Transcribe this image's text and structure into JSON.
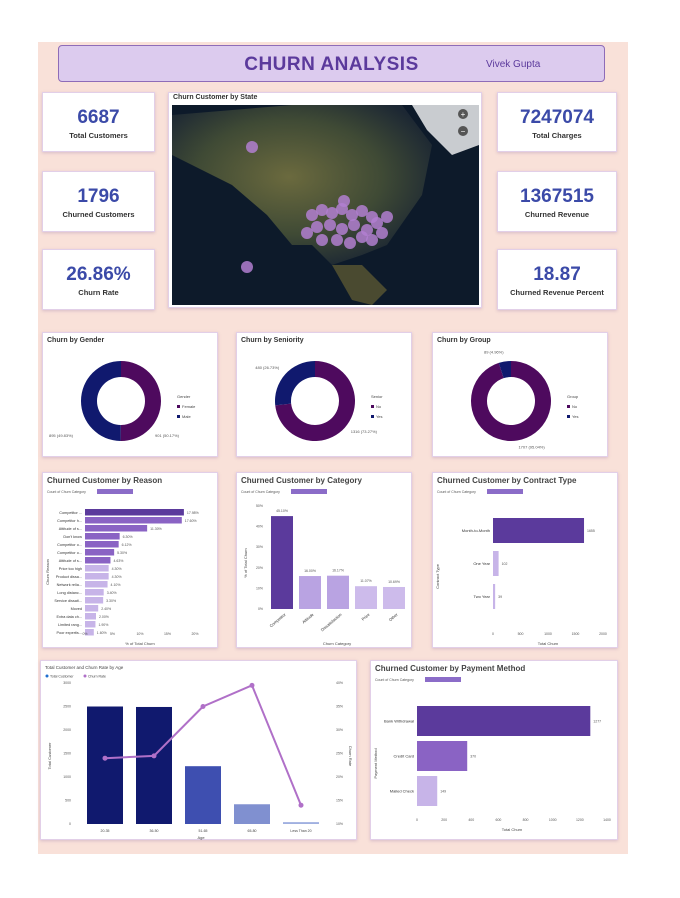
{
  "header": {
    "title": "CHURN ANALYSIS",
    "author": "Vivek Gupta"
  },
  "kpis_left": [
    {
      "value": "6687",
      "label": "Total Customers"
    },
    {
      "value": "1796",
      "label": "Churned Customers"
    },
    {
      "value": "26.86%",
      "label": "Churn Rate"
    }
  ],
  "kpis_right": [
    {
      "value": "7247074",
      "label": "Total Charges"
    },
    {
      "value": "1367515",
      "label": "Churned Revenue"
    },
    {
      "value": "18.87",
      "label": "Churned Revenue Percent"
    }
  ],
  "map": {
    "title": "Churn Customer by State",
    "zoom_in": "+",
    "zoom_out": "−"
  },
  "colors": {
    "accent": "#5b3a9c",
    "purple_dark": "#4e0a5e",
    "navy": "#10196e",
    "bar_purple": "#5b3a9c",
    "bar_light": "#c7b4e8",
    "line": "#b070c8",
    "kpi": "#3b4aa8"
  },
  "chart_data": [
    {
      "type": "pie",
      "title": "Churn by Gender",
      "legend_title": "Gender",
      "legend_position": "right",
      "slices": [
        {
          "name": "Female",
          "value": 901,
          "label": "901 (50.17%)",
          "color": "#4e0a5e"
        },
        {
          "name": "Male",
          "value": 895,
          "label": "895 (49.83%)",
          "color": "#10196e"
        }
      ]
    },
    {
      "type": "pie",
      "title": "Churn by Seniority",
      "legend_title": "Senior",
      "legend_position": "right",
      "slices": [
        {
          "name": "No",
          "value": 1316,
          "label": "1316 (73.27%)",
          "color": "#4e0a5e"
        },
        {
          "name": "Yes",
          "value": 480,
          "label": "480 (26.73%)",
          "color": "#10196e"
        }
      ]
    },
    {
      "type": "pie",
      "title": "Churn by Group",
      "legend_title": "Group",
      "legend_position": "right",
      "slices": [
        {
          "name": "No",
          "value": 1707,
          "label": "1707 (95.04%)",
          "color": "#4e0a5e"
        },
        {
          "name": "Yes",
          "value": 89,
          "label": "89 (4.96%)",
          "color": "#10196e"
        }
      ]
    },
    {
      "type": "bar",
      "orientation": "horizontal",
      "title": "Churned Customer by Reason",
      "legend": "Count of Churn Category",
      "ylabel": "Churn Reason",
      "xlabel": "% of Total Churn",
      "xlim": [
        0,
        20
      ],
      "xticks": [
        "0%",
        "5%",
        "10%",
        "15%",
        "20%"
      ],
      "categories": [
        "Competitor ...",
        "Competitor h...",
        "Attitude of s...",
        "Don't know",
        "Competitor o...",
        "Competitor o...",
        "Attitude of s...",
        "Price too high",
        "Product dissa...",
        "Network relia...",
        "Long distanc...",
        "Service dissati...",
        "Moved",
        "Extra data ch...",
        "Limited rang...",
        "Poor expertis..."
      ],
      "values": [
        17.98,
        17.6,
        11.3,
        6.3,
        6.12,
        5.3,
        4.63,
        4.3,
        4.3,
        4.1,
        3.4,
        3.3,
        2.4,
        2.0,
        1.9,
        1.6
      ],
      "labels": [
        "17.98%",
        "17.60%",
        "11.30%",
        "6.30%",
        "6.12%",
        "5.30%",
        "4.63%",
        "4.30%",
        "4.30%",
        "4.10%",
        "3.40%",
        "3.30%",
        "2.40%",
        "2.00%",
        "1.90%",
        "1.60%"
      ]
    },
    {
      "type": "bar",
      "title": "Churned Customer by Category",
      "legend": "Count of Churn Category",
      "xlabel": "Churn Category",
      "ylabel": "% of Total Churn",
      "ylim": [
        0,
        50
      ],
      "yticks": [
        "0%",
        "10%",
        "20%",
        "30%",
        "40%",
        "50%"
      ],
      "categories": [
        "Competitor",
        "Attitude",
        "Dissatisfaction",
        "Price",
        "Other"
      ],
      "values": [
        45.1,
        16.0,
        16.17,
        11.07,
        10.69
      ],
      "labels": [
        "45.10%",
        "16.00%",
        "16.17%",
        "11.07%",
        "10.69%"
      ]
    },
    {
      "type": "bar",
      "orientation": "horizontal",
      "title": "Churned Customer by Contract Type",
      "legend": "Count of Churn Category",
      "ylabel": "Contract Type",
      "xlabel": "Total Churn",
      "xlim": [
        0,
        2000
      ],
      "xticks": [
        "0",
        "500",
        "1000",
        "1500",
        "2000"
      ],
      "categories": [
        "Month-to-Month",
        "One Year",
        "Two Year"
      ],
      "values": [
        1655,
        102,
        39
      ],
      "labels": [
        "1655",
        "102",
        "39"
      ]
    },
    {
      "type": "bar+line",
      "title": "Total Customer and Churn Rate by Age",
      "legend": [
        "Total Customer",
        "Churn Rate"
      ],
      "xlabel": "Age",
      "ylabel": "Total Customer",
      "y2label": "Churn Rate",
      "ylim": [
        0,
        3000
      ],
      "yticks": [
        "0",
        "500",
        "1000",
        "1500",
        "2000",
        "2500",
        "3000"
      ],
      "y2lim": [
        10,
        40
      ],
      "y2ticks": [
        "10%",
        "15%",
        "20%",
        "25%",
        "30%",
        "35%",
        "40%"
      ],
      "categories": [
        "20-35",
        "36-50",
        "51-65",
        "65-80",
        "Less Than 20"
      ],
      "bars": [
        2500,
        2490,
        1230,
        420,
        40
      ],
      "line": [
        24.0,
        24.5,
        35.0,
        39.5,
        14.0
      ]
    },
    {
      "type": "bar",
      "orientation": "horizontal",
      "title": "Churned Customer by Payment Method",
      "legend": "Count of Churn Category",
      "ylabel": "Payment Method",
      "xlabel": "Total Churn",
      "xlim": [
        0,
        1400
      ],
      "xticks": [
        "0",
        "200",
        "400",
        "600",
        "800",
        "1000",
        "1200",
        "1400"
      ],
      "categories": [
        "Bank Withdrawal",
        "Credit Card",
        "Mailed Check"
      ],
      "values": [
        1277,
        370,
        149
      ],
      "labels": [
        "1277",
        "370",
        "149"
      ]
    }
  ]
}
